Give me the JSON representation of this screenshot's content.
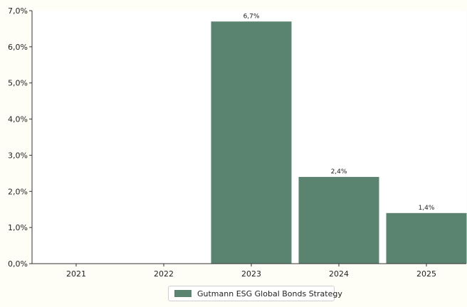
{
  "chart_data": {
    "type": "bar",
    "categories": [
      "2021",
      "2022",
      "2023",
      "2024",
      "2025"
    ],
    "series": [
      {
        "name": "Gutmann ESG Global Bonds Strategy",
        "values": [
          null,
          null,
          6.7,
          2.4,
          1.4
        ],
        "data_labels": [
          "",
          "",
          "6,7%",
          "2,4%",
          "1,4%"
        ],
        "color": "#5b8470"
      }
    ],
    "y_ticks": [
      0,
      1,
      2,
      3,
      4,
      5,
      6,
      7
    ],
    "y_tick_labels": [
      "0,0%",
      "1,0%",
      "2,0%",
      "3,0%",
      "4,0%",
      "5,0%",
      "6,0%",
      "7,0%"
    ],
    "ylim": [
      0,
      7
    ],
    "grid": false,
    "legend_position": "bottom-center",
    "axis_color": "#333333"
  }
}
